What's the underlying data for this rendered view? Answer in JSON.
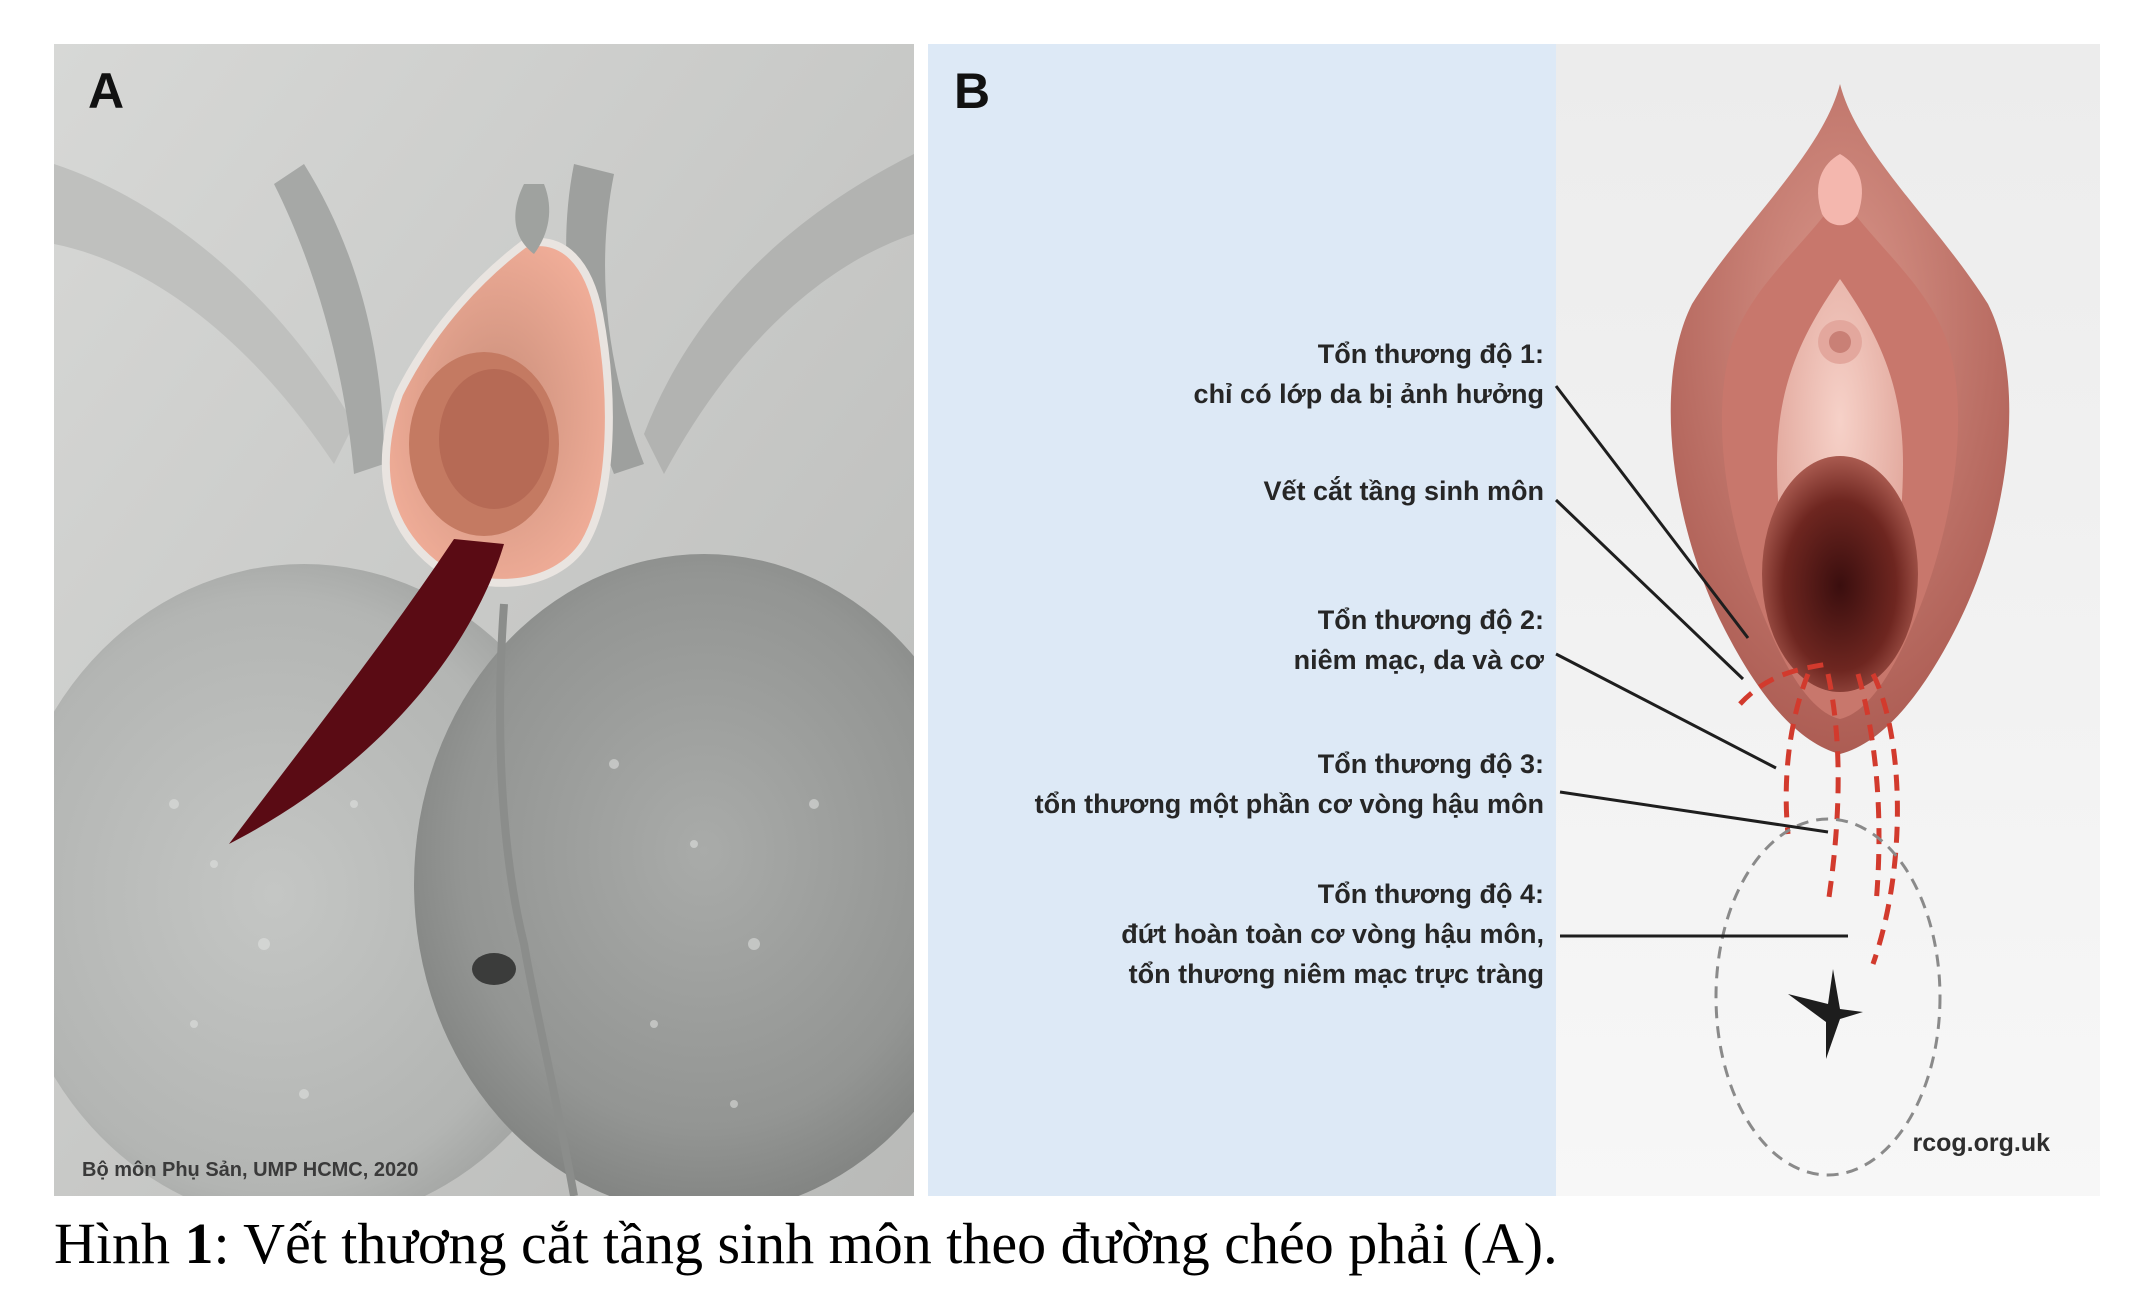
{
  "panel_a": {
    "letter": "A",
    "credit": "Bộ môn Phụ Sản, UMP HCMC, 2020"
  },
  "panel_b": {
    "letter": "B",
    "credit": "rcog.org.uk",
    "labels": [
      {
        "lines": [
          "Tổn thương độ 1:",
          "chỉ có lớp da bị ảnh hưởng"
        ]
      },
      {
        "lines": [
          "Vết cắt tầng sinh môn"
        ]
      },
      {
        "lines": [
          "Tổn thương độ 2:",
          "niêm mạc, da và cơ"
        ]
      },
      {
        "lines": [
          "Tổn thương độ 3:",
          "tổn thương một phần cơ vòng hậu môn"
        ]
      },
      {
        "lines": [
          "Tổn thương độ 4:",
          "đứt hoàn toàn cơ vòng hậu môn,",
          "tổn thương niêm mạc trực tràng"
        ]
      }
    ]
  },
  "caption": {
    "prefix": "Hình ",
    "number": "1",
    "text": ": Vết thương cắt tầng sinh môn theo đường chéo phải (A)."
  },
  "colors": {
    "model_gray": "#c9cac8",
    "tissue_pink": "#e8a591",
    "incision_red": "#5a0b14",
    "panel_b_blue": "#dde9f6",
    "dashed_red": "#d23a2d",
    "dashed_gray": "#8a8a8a"
  }
}
